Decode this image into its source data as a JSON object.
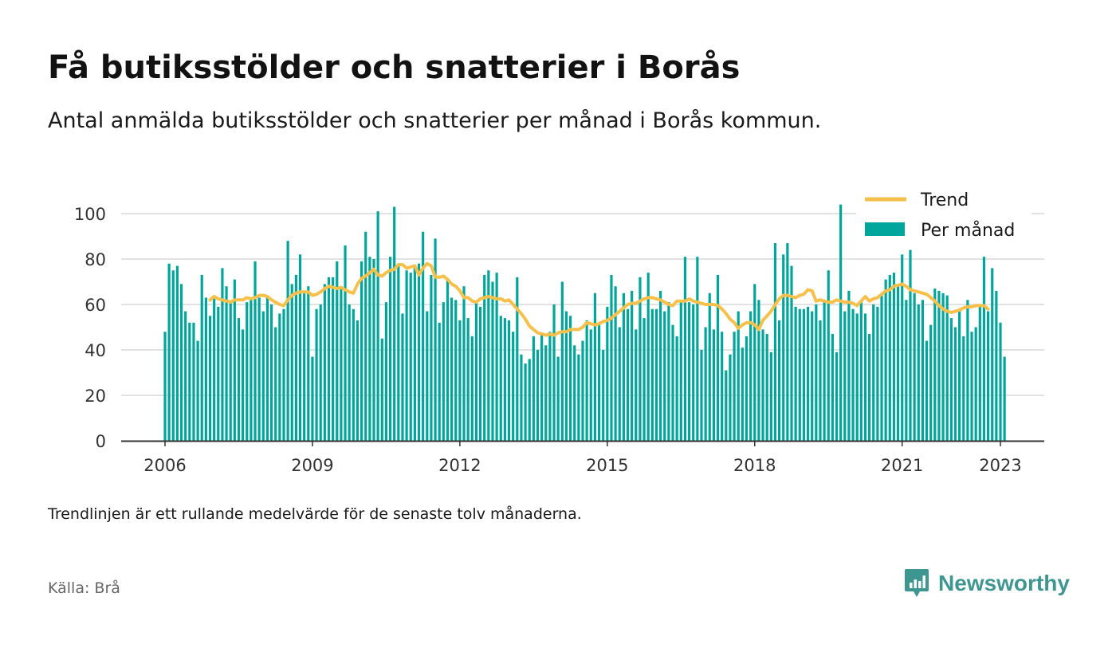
{
  "header": {
    "title": "Få butiksstölder och snatterier i Borås",
    "subtitle": "Antal anmälda butiksstölder och snatterier per månad i Borås kommun."
  },
  "footer": {
    "note": "Trendlinjen är ett rullande medelvärde för de senaste tolv månaderna.",
    "source": "Källa: Brå",
    "brand": "Newsworthy",
    "brand_icon": "bar-chart-speech-bubble-icon"
  },
  "colors": {
    "bar": "#00a69c",
    "trend": "#f7c04a",
    "grid": "#d9d9d9",
    "axis": "#333333",
    "brand": "#3e9690"
  },
  "chart_data": {
    "type": "bar",
    "x_start": "2006-01",
    "x_end": "2023-01",
    "xticks": [
      "2006",
      "2009",
      "2012",
      "2015",
      "2018",
      "2021",
      "2023"
    ],
    "yticks": [
      0,
      20,
      40,
      60,
      80,
      100
    ],
    "ylim": [
      0,
      110
    ],
    "grid": true,
    "legend_position": "top-right",
    "series": [
      {
        "name": "Per månad",
        "kind": "bar",
        "values": [
          48,
          78,
          75,
          77,
          69,
          57,
          52,
          52,
          44,
          73,
          63,
          55,
          63,
          59,
          76,
          68,
          61,
          71,
          54,
          49,
          61,
          62,
          79,
          63,
          57,
          63,
          60,
          50,
          56,
          58,
          88,
          69,
          73,
          82,
          65,
          68,
          37,
          58,
          60,
          69,
          72,
          72,
          79,
          67,
          86,
          60,
          58,
          53,
          79,
          92,
          81,
          80,
          101,
          45,
          61,
          81,
          103,
          77,
          56,
          75,
          74,
          77,
          78,
          92,
          57,
          73,
          89,
          52,
          61,
          71,
          63,
          62,
          53,
          68,
          54,
          46,
          61,
          59,
          73,
          75,
          70,
          74,
          55,
          54,
          53,
          48,
          72,
          38,
          34,
          36,
          46,
          40,
          47,
          42,
          48,
          60,
          37,
          70,
          57,
          55,
          42,
          38,
          44,
          53,
          49,
          65,
          51,
          40,
          59,
          73,
          68,
          50,
          65,
          58,
          66,
          49,
          72,
          54,
          74,
          58,
          58,
          66,
          57,
          61,
          51,
          46,
          62,
          81,
          61,
          60,
          81,
          40,
          50,
          65,
          49,
          73,
          48,
          31,
          38,
          48,
          57,
          41,
          46,
          57,
          69,
          62,
          49,
          47,
          39,
          87,
          53,
          82,
          87,
          77,
          59,
          58,
          58,
          59,
          57,
          60,
          53,
          62,
          75,
          47,
          39,
          104,
          57,
          66,
          58,
          56,
          61,
          56,
          47,
          60,
          59,
          65,
          71,
          73,
          74,
          69,
          82,
          62,
          84,
          65,
          60,
          62,
          44,
          51,
          67,
          66,
          65,
          64,
          54,
          50,
          58,
          46,
          62,
          48,
          50,
          60,
          81,
          57,
          76,
          66,
          52,
          37
        ]
      },
      {
        "name": "Trend",
        "kind": "line",
        "start": "2006-12",
        "values": [
          62,
          63.5,
          62.5,
          62,
          61.5,
          61,
          62,
          62,
          62,
          63,
          62.5,
          63,
          64,
          64,
          63.5,
          62,
          61,
          60,
          59.5,
          62,
          64,
          65,
          65.5,
          65.5,
          65.5,
          64,
          64.5,
          65.5,
          67,
          68,
          67.5,
          67,
          67.5,
          66.5,
          65.5,
          65,
          69,
          71.5,
          72.5,
          74,
          75.5,
          73,
          72.5,
          74,
          75,
          75.5,
          77.5,
          77.5,
          76,
          76.5,
          77,
          73,
          76,
          78,
          77,
          72,
          72,
          72.5,
          71,
          69,
          68,
          66,
          63,
          63,
          61.5,
          61,
          62.5,
          63,
          63.5,
          63,
          62.5,
          62.5,
          61.5,
          62,
          60,
          58,
          56,
          53.5,
          50.5,
          49,
          47.5,
          47,
          46.5,
          47,
          46.5,
          47.5,
          48,
          48,
          49,
          49,
          49,
          50,
          52,
          51.5,
          51,
          51.5,
          52.5,
          53,
          54,
          55.5,
          57,
          58.5,
          60,
          60.5,
          60.5,
          61.5,
          62.5,
          63,
          63,
          62.5,
          62,
          61,
          60,
          59.5,
          61.5,
          61.5,
          61.5,
          62.5,
          61.5,
          61,
          60.5,
          60,
          60,
          60,
          59.5,
          58,
          56,
          53.5,
          52,
          49.5,
          51,
          52,
          52,
          51,
          49,
          53,
          55,
          57,
          60,
          62.5,
          64,
          64,
          63.5,
          63,
          64,
          64.5,
          66.5,
          66,
          61.5,
          62,
          61.5,
          61,
          61,
          62,
          61.5,
          61,
          61,
          60.5,
          59.5,
          61.5,
          63.5,
          61.5,
          62.5,
          63,
          64.5,
          66,
          66.5,
          68,
          68.5,
          69,
          68,
          66.5,
          66,
          65.5,
          65,
          64.5,
          63,
          61.5,
          59.5,
          58,
          57,
          56.5,
          57,
          57.5,
          58.5,
          59,
          59,
          59.5,
          59.5,
          59.5,
          58
        ]
      }
    ]
  }
}
